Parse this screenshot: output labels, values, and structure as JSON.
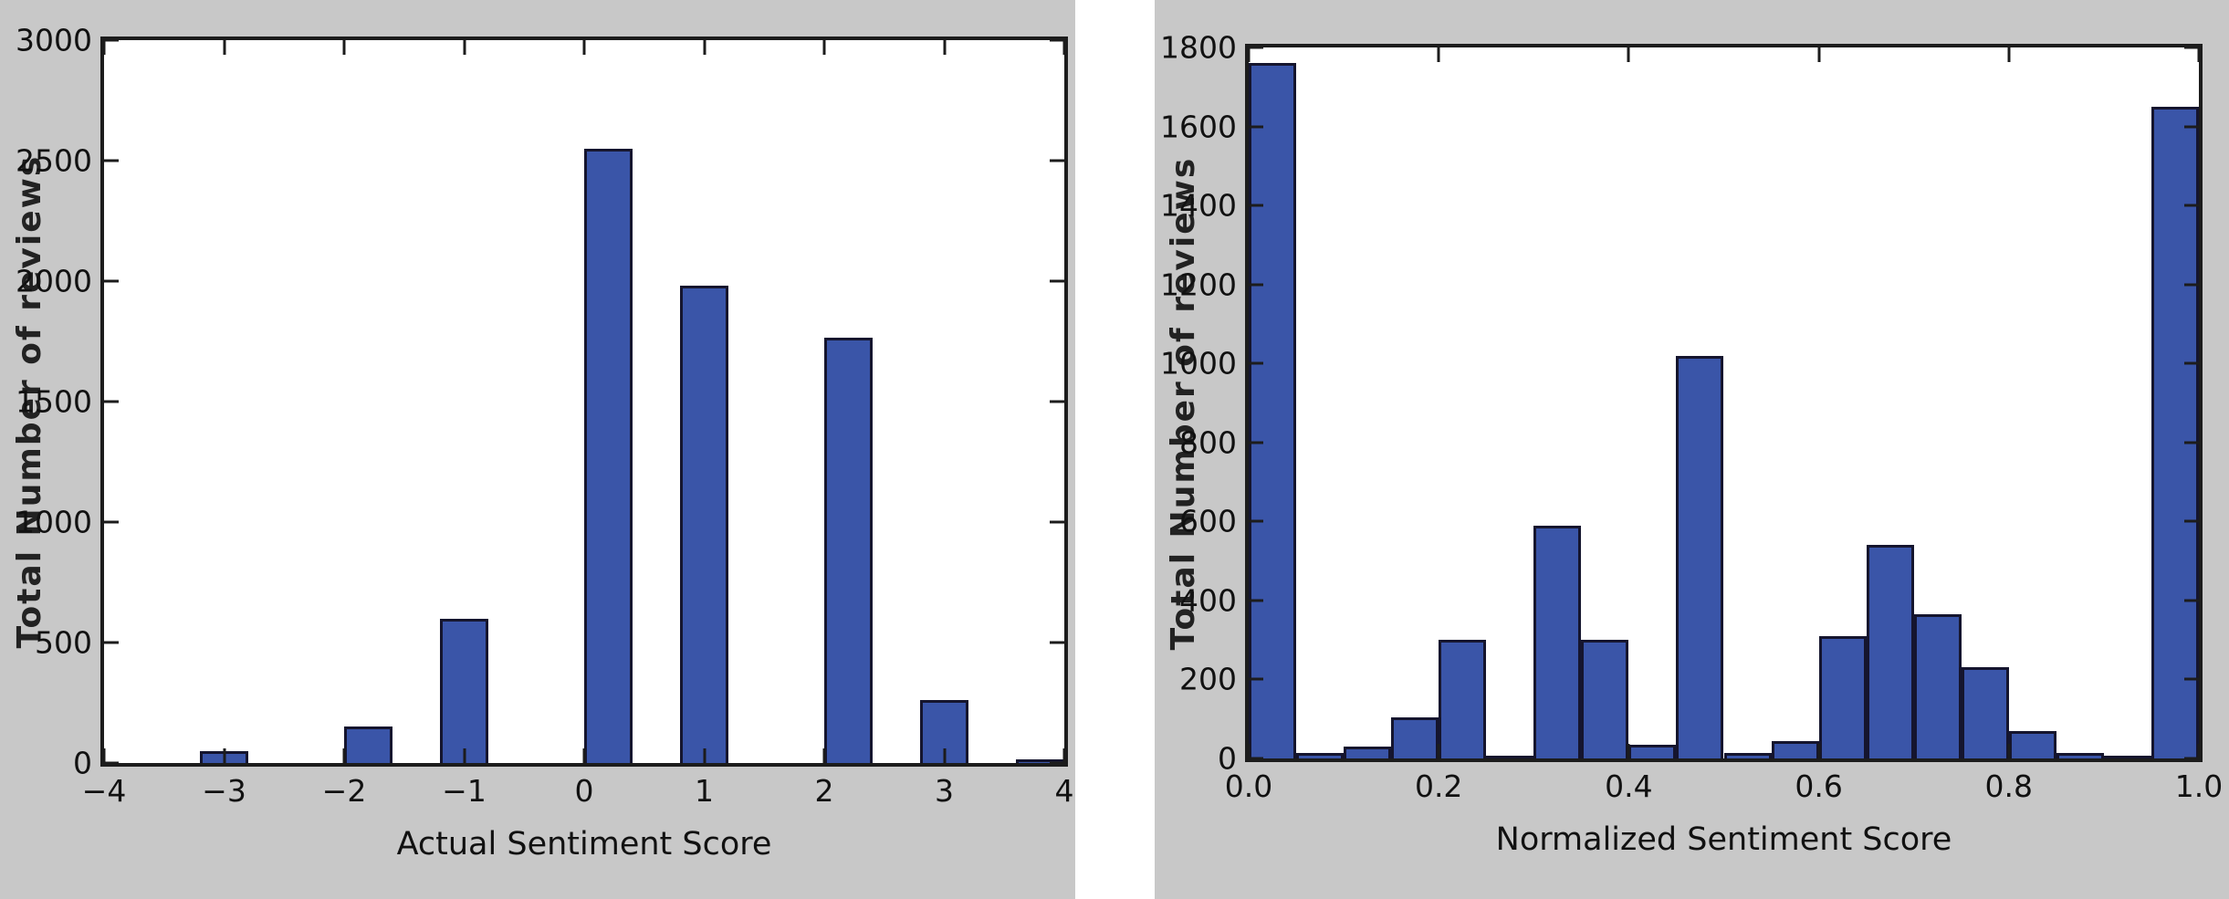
{
  "page": {
    "background": "#ffffff"
  },
  "colors": {
    "figure_background": "#c8c8c8",
    "plot_background": "#ffffff",
    "bar_fill": "#3a55a8",
    "bar_edge": "#15152e",
    "spine": "#1c1c1c",
    "text": "#111111"
  },
  "chart_data": [
    {
      "type": "bar",
      "title": "",
      "xlabel": "Actual Sentiment Score",
      "ylabel": "Total Number of reviews",
      "xlim": [
        -4,
        4
      ],
      "ylim": [
        0,
        3000
      ],
      "grid": false,
      "legend": false,
      "xticks": [
        {
          "v": -4,
          "label": "−4"
        },
        {
          "v": -3,
          "label": "−3"
        },
        {
          "v": -2,
          "label": "−2"
        },
        {
          "v": -1,
          "label": "−1"
        },
        {
          "v": 0,
          "label": "0"
        },
        {
          "v": 1,
          "label": "1"
        },
        {
          "v": 2,
          "label": "2"
        },
        {
          "v": 3,
          "label": "3"
        },
        {
          "v": 4,
          "label": "4"
        }
      ],
      "yticks": [
        {
          "v": 0,
          "label": "0"
        },
        {
          "v": 500,
          "label": "500"
        },
        {
          "v": 1000,
          "label": "1000"
        },
        {
          "v": 1500,
          "label": "1500"
        },
        {
          "v": 2000,
          "label": "2000"
        },
        {
          "v": 2500,
          "label": "2500"
        },
        {
          "v": 3000,
          "label": "3000"
        }
      ],
      "bars": [
        {
          "x0": -3.2,
          "x1": -2.8,
          "score": -3,
          "count": 50
        },
        {
          "x0": -2.0,
          "x1": -1.6,
          "score": -2,
          "count": 150
        },
        {
          "x0": -1.2,
          "x1": -0.8,
          "score": -1,
          "count": 600
        },
        {
          "x0": 0.0,
          "x1": 0.4,
          "score": 0,
          "count": 2550
        },
        {
          "x0": 0.8,
          "x1": 1.2,
          "score": 1,
          "count": 1980
        },
        {
          "x0": 2.0,
          "x1": 2.4,
          "score": 2,
          "count": 1765
        },
        {
          "x0": 2.8,
          "x1": 3.2,
          "score": 3,
          "count": 260
        },
        {
          "x0": 3.6,
          "x1": 4.0,
          "score": 4,
          "count": 15
        }
      ]
    },
    {
      "type": "bar",
      "title": "",
      "xlabel": "Normalized Sentiment Score",
      "ylabel": "Total Number of reviews",
      "xlim": [
        0,
        1
      ],
      "ylim": [
        0,
        1800
      ],
      "grid": false,
      "legend": false,
      "bin_width": 0.05,
      "xticks": [
        {
          "v": 0.0,
          "label": "0.0"
        },
        {
          "v": 0.2,
          "label": "0.2"
        },
        {
          "v": 0.4,
          "label": "0.4"
        },
        {
          "v": 0.6,
          "label": "0.6"
        },
        {
          "v": 0.8,
          "label": "0.8"
        },
        {
          "v": 1.0,
          "label": "1.0"
        }
      ],
      "yticks": [
        {
          "v": 0,
          "label": "0"
        },
        {
          "v": 200,
          "label": "200"
        },
        {
          "v": 400,
          "label": "400"
        },
        {
          "v": 600,
          "label": "600"
        },
        {
          "v": 800,
          "label": "800"
        },
        {
          "v": 1000,
          "label": "1000"
        },
        {
          "v": 1200,
          "label": "1200"
        },
        {
          "v": 1400,
          "label": "1400"
        },
        {
          "v": 1600,
          "label": "1600"
        },
        {
          "v": 1800,
          "label": "1800"
        }
      ],
      "bars": [
        {
          "x0": 0.0,
          "x1": 0.05,
          "count": 1760
        },
        {
          "x0": 0.05,
          "x1": 0.1,
          "count": 15
        },
        {
          "x0": 0.1,
          "x1": 0.15,
          "count": 30
        },
        {
          "x0": 0.15,
          "x1": 0.2,
          "count": 105
        },
        {
          "x0": 0.2,
          "x1": 0.25,
          "count": 300
        },
        {
          "x0": 0.25,
          "x1": 0.3,
          "count": 5
        },
        {
          "x0": 0.3,
          "x1": 0.35,
          "count": 590
        },
        {
          "x0": 0.35,
          "x1": 0.4,
          "count": 300
        },
        {
          "x0": 0.4,
          "x1": 0.45,
          "count": 35
        },
        {
          "x0": 0.45,
          "x1": 0.5,
          "count": 1020
        },
        {
          "x0": 0.5,
          "x1": 0.55,
          "count": 15
        },
        {
          "x0": 0.55,
          "x1": 0.6,
          "count": 45
        },
        {
          "x0": 0.6,
          "x1": 0.65,
          "count": 310
        },
        {
          "x0": 0.65,
          "x1": 0.7,
          "count": 540
        },
        {
          "x0": 0.7,
          "x1": 0.75,
          "count": 365
        },
        {
          "x0": 0.75,
          "x1": 0.8,
          "count": 230
        },
        {
          "x0": 0.8,
          "x1": 0.85,
          "count": 70
        },
        {
          "x0": 0.85,
          "x1": 0.9,
          "count": 15
        },
        {
          "x0": 0.9,
          "x1": 0.95,
          "count": 8
        },
        {
          "x0": 0.95,
          "x1": 1.0,
          "count": 1650
        }
      ]
    }
  ]
}
